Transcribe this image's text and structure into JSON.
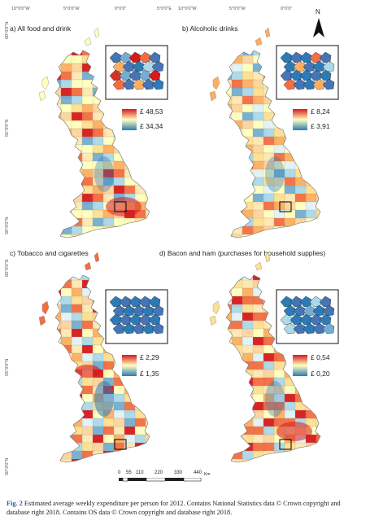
{
  "coords": {
    "top_left": [
      "10°0'0\"W",
      "5°0'0\"W",
      "0°0'0\""
    ],
    "top_right": [
      "5°0'0\"E",
      "10°0'0\"W",
      "5°0'0\"W",
      "0°0'0\""
    ],
    "left": [
      "60°0'0\"N",
      "55°0'0\"N",
      "50°0'0\"N",
      "60°0'0\"N",
      "55°0'0\"N",
      "50°0'0\"N"
    ]
  },
  "north_label": "N",
  "panels": [
    {
      "title": "a) All food and drink",
      "legend_high": "£ 48,53",
      "legend_low": "£ 34,34"
    },
    {
      "title": "b) Alcoholic drinks",
      "legend_high": "£ 8,24",
      "legend_low": "£ 3,91"
    },
    {
      "title": "c) Tobacco and cigarettes",
      "legend_high": "£ 2,29",
      "legend_low": "£ 1,35"
    },
    {
      "title": "d) Bacon and ham (purchases for household supplies)",
      "legend_high": "£ 0,54",
      "legend_low": "£ 0,20"
    }
  ],
  "scale": {
    "ticks": [
      "0",
      "55",
      "110",
      "220",
      "330",
      "440"
    ],
    "unit": "Km"
  },
  "caption": {
    "fig": "Fig. 2",
    "text": "Estimated average weekly expenditure per person for 2012. Contains National Statistics data © Crown copyright and database right 2018. Contains OS data © Crown copyright and database right 2018."
  },
  "colors": {
    "high": "#d7191c",
    "mid": "#ffffbf",
    "low": "#2c7bb6",
    "accent": "#2a61a8"
  }
}
